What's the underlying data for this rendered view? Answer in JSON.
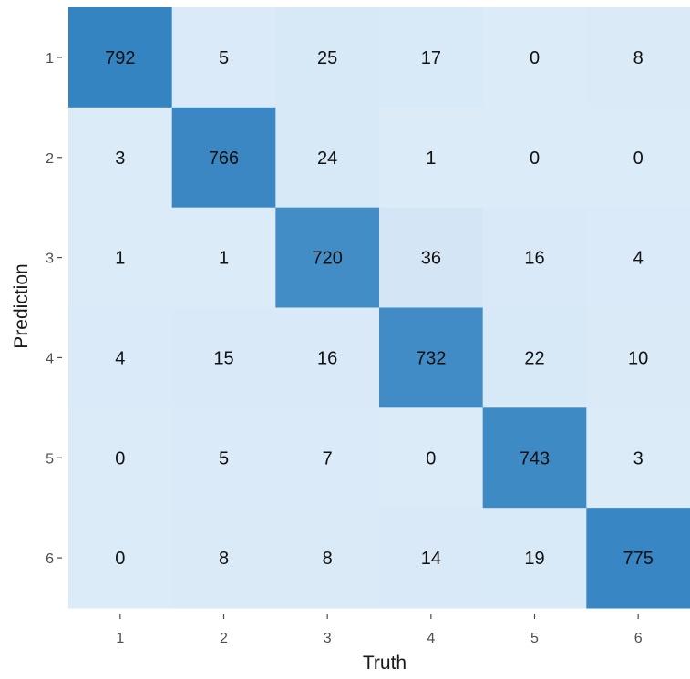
{
  "chart_data": {
    "type": "heatmap",
    "title": "",
    "xlabel": "Truth",
    "ylabel": "Prediction",
    "x_categories": [
      "1",
      "2",
      "3",
      "4",
      "5",
      "6"
    ],
    "y_categories": [
      "1",
      "2",
      "3",
      "4",
      "5",
      "6"
    ],
    "values": [
      [
        792,
        5,
        25,
        17,
        0,
        8
      ],
      [
        3,
        766,
        24,
        1,
        0,
        0
      ],
      [
        1,
        1,
        720,
        36,
        16,
        4
      ],
      [
        4,
        15,
        16,
        732,
        22,
        10
      ],
      [
        0,
        5,
        7,
        0,
        743,
        3
      ],
      [
        0,
        8,
        8,
        14,
        19,
        775
      ]
    ],
    "color_low": "#dcebf8",
    "color_high": "#3484c2",
    "value_range": [
      0,
      792
    ],
    "grid": false,
    "legend": "none"
  }
}
